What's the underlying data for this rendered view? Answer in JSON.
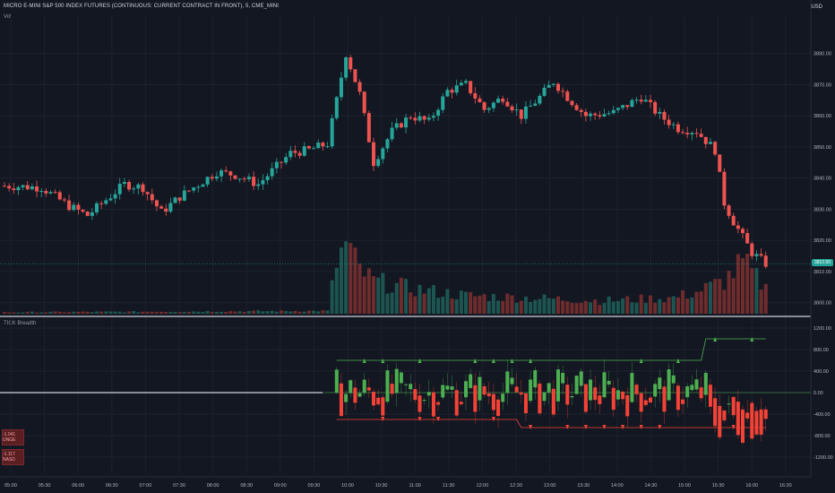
{
  "header": {
    "title": "MICRO E-MINI S&P 500 INDEX FUTURES (CONTINUOUS: CURRENT CONTRACT IN FRONT), 5, CME_MINI",
    "volume_label": "Vol",
    "currency": "USD"
  },
  "lower_pane": {
    "label": "TICK Breadth",
    "badges": [
      "-1.041 UNGE",
      "-1.117 NASD"
    ]
  },
  "price_tag": "3812.50",
  "chart_data": [
    {
      "type": "candlestick",
      "ylim": [
        3797,
        3892
      ],
      "y_ticks": [
        "3880.00",
        "3870.00",
        "3860.00",
        "3850.00",
        "3840.00",
        "3830.00",
        "3820.00",
        "3810.00",
        "3800.00"
      ],
      "x_ticks": [
        "05:00",
        "05:30",
        "06:00",
        "06:30",
        "07:00",
        "07:30",
        "08:00",
        "08:30",
        "09:00",
        "09:30",
        "10:00",
        "10:30",
        "11:00",
        "11:30",
        "12:00",
        "12:30",
        "13:00",
        "13:30",
        "14:00",
        "14:30",
        "15:00",
        "15:30",
        "16:00",
        "16:30"
      ],
      "anchors": [
        {
          "t": 0,
          "p": 3837.5
        },
        {
          "t": 8,
          "p": 3837
        },
        {
          "t": 14,
          "p": 3831
        },
        {
          "t": 18,
          "p": 3828
        },
        {
          "t": 26,
          "p": 3838
        },
        {
          "t": 30,
          "p": 3837
        },
        {
          "t": 32,
          "p": 3833
        },
        {
          "t": 34,
          "p": 3829
        },
        {
          "t": 38,
          "p": 3834
        },
        {
          "t": 46,
          "p": 3842
        },
        {
          "t": 50,
          "p": 3841
        },
        {
          "t": 55,
          "p": 3838
        },
        {
          "t": 62,
          "p": 3848
        },
        {
          "t": 66,
          "p": 3849
        },
        {
          "t": 70,
          "p": 3851
        },
        {
          "t": 72,
          "p": 3865
        },
        {
          "t": 74,
          "p": 3880
        },
        {
          "t": 77,
          "p": 3867
        },
        {
          "t": 80,
          "p": 3845
        },
        {
          "t": 84,
          "p": 3855
        },
        {
          "t": 88,
          "p": 3860
        },
        {
          "t": 92,
          "p": 3858
        },
        {
          "t": 96,
          "p": 3868
        },
        {
          "t": 100,
          "p": 3870
        },
        {
          "t": 104,
          "p": 3862
        },
        {
          "t": 108,
          "p": 3866
        },
        {
          "t": 112,
          "p": 3860
        },
        {
          "t": 116,
          "p": 3866
        },
        {
          "t": 119,
          "p": 3871
        },
        {
          "t": 122,
          "p": 3866
        },
        {
          "t": 126,
          "p": 3860
        },
        {
          "t": 132,
          "p": 3861
        },
        {
          "t": 138,
          "p": 3866
        },
        {
          "t": 142,
          "p": 3860
        },
        {
          "t": 146,
          "p": 3856
        },
        {
          "t": 150,
          "p": 3855
        },
        {
          "t": 154,
          "p": 3849
        },
        {
          "t": 156,
          "p": 3832
        },
        {
          "t": 158,
          "p": 3826
        },
        {
          "t": 162,
          "p": 3816
        },
        {
          "t": 165,
          "p": 3812.5
        }
      ],
      "volume_anchors": [
        {
          "t": 0,
          "v": 0.02
        },
        {
          "t": 70,
          "v": 0.04
        },
        {
          "t": 72,
          "v": 0.7
        },
        {
          "t": 74,
          "v": 0.95
        },
        {
          "t": 77,
          "v": 0.6
        },
        {
          "t": 80,
          "v": 0.45
        },
        {
          "t": 88,
          "v": 0.35
        },
        {
          "t": 100,
          "v": 0.25
        },
        {
          "t": 130,
          "v": 0.18
        },
        {
          "t": 145,
          "v": 0.22
        },
        {
          "t": 150,
          "v": 0.3
        },
        {
          "t": 156,
          "v": 0.45
        },
        {
          "t": 160,
          "v": 0.7
        },
        {
          "t": 165,
          "v": 0.35
        }
      ]
    },
    {
      "type": "bar",
      "ylim": [
        -1500,
        1300
      ],
      "y_ticks": [
        "1200.00",
        "800.00",
        "400.00",
        "0.00",
        "-400.00",
        "-800.00",
        "-1200.00"
      ],
      "upper_band": {
        "start": 72,
        "values": [
          600,
          600,
          600,
          600,
          600,
          600,
          600,
          600,
          1000,
          1000
        ]
      },
      "lower_band": {
        "start": 72,
        "values": [
          -500,
          -500,
          -500,
          -500,
          -650,
          -650,
          -650,
          -650
        ]
      }
    }
  ],
  "colors": {
    "up": "#26a69a",
    "down": "#ef5350",
    "tick_up": "#4caf50",
    "tick_down": "#f44336",
    "grid": "#1e222d",
    "axis_text": "#b2b5be",
    "price_tag": "#26a69a"
  }
}
